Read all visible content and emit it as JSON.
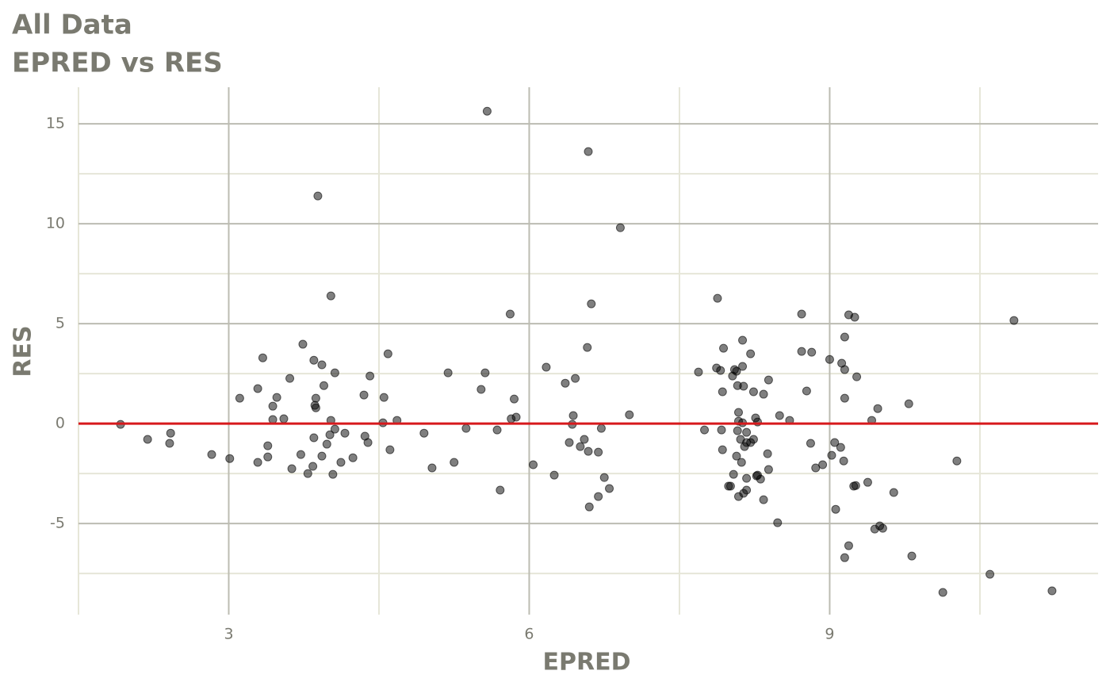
{
  "chart_data": {
    "type": "scatter",
    "title": "All Data",
    "subtitle": "EPRED vs RES",
    "x_label": "EPRED",
    "y_label": "RES",
    "xlim": [
      1.5,
      11.68
    ],
    "ylim": [
      -9.56,
      16.83
    ],
    "xticks": [
      3,
      6,
      9
    ],
    "yticks": [
      -5,
      0,
      5,
      10,
      15
    ],
    "x_minor_grid": [
      1.5,
      4.5,
      7.5,
      10.5
    ],
    "y_minor_grid": [
      -7.5,
      -2.5,
      2.5,
      7.5,
      12.5
    ],
    "grid": true,
    "point_color": "#000000",
    "hline": {
      "value": 0,
      "color": "#d7191c"
    },
    "x": [
      1.92,
      2.19,
      2.41,
      2.42,
      2.83,
      3.01,
      3.11,
      3.29,
      3.34,
      3.29,
      3.39,
      3.39,
      3.44,
      3.44,
      3.48,
      3.55,
      3.61,
      3.63,
      3.72,
      3.74,
      3.79,
      3.85,
      3.85,
      3.84,
      3.86,
      3.87,
      3.87,
      3.89,
      3.93,
      3.93,
      3.95,
      3.98,
      4.01,
      4.02,
      4.02,
      4.04,
      4.06,
      4.06,
      4.12,
      4.16,
      4.24,
      4.35,
      4.36,
      4.39,
      4.41,
      4.54,
      4.55,
      4.59,
      4.61,
      4.68,
      4.95,
      5.03,
      5.19,
      5.25,
      5.37,
      5.52,
      5.56,
      5.58,
      5.68,
      5.71,
      5.81,
      5.82,
      5.85,
      5.87,
      6.04,
      6.17,
      6.25,
      6.36,
      6.4,
      6.43,
      6.44,
      6.46,
      6.51,
      6.55,
      6.58,
      6.59,
      6.59,
      6.6,
      6.62,
      6.69,
      6.69,
      6.72,
      6.75,
      6.8,
      6.91,
      7.0,
      7.69,
      7.75,
      7.87,
      7.88,
      7.91,
      7.92,
      7.93,
      7.93,
      7.94,
      7.99,
      8.01,
      8.03,
      8.04,
      8.05,
      8.07,
      8.07,
      8.08,
      8.08,
      8.09,
      8.09,
      8.09,
      8.11,
      8.12,
      8.13,
      8.13,
      8.13,
      8.14,
      8.14,
      8.15,
      8.17,
      8.17,
      8.17,
      8.17,
      8.21,
      8.21,
      8.24,
      8.24,
      8.26,
      8.27,
      8.28,
      8.28,
      8.31,
      8.34,
      8.34,
      8.38,
      8.39,
      8.39,
      8.48,
      8.5,
      8.6,
      8.72,
      8.72,
      8.77,
      8.81,
      8.82,
      8.86,
      8.93,
      9.0,
      9.02,
      9.05,
      9.06,
      9.11,
      9.12,
      9.14,
      9.15,
      9.15,
      9.15,
      9.15,
      9.19,
      9.19,
      9.24,
      9.25,
      9.26,
      9.27,
      9.38,
      9.42,
      9.45,
      9.48,
      9.5,
      9.53,
      9.64,
      9.79,
      9.82,
      10.13,
      10.27,
      10.6,
      10.84,
      11.22
    ],
    "y": [
      -0.04,
      -0.79,
      -0.99,
      -0.48,
      -1.55,
      -1.75,
      1.27,
      1.75,
      3.29,
      -1.94,
      -1.11,
      -1.67,
      0.87,
      0.2,
      1.31,
      0.24,
      2.26,
      -2.26,
      -1.55,
      3.97,
      -2.5,
      3.17,
      -0.71,
      -2.14,
      0.91,
      1.27,
      0.79,
      11.39,
      2.94,
      -1.63,
      1.9,
      -1.03,
      -0.56,
      6.39,
      0.16,
      -2.54,
      2.54,
      -0.28,
      -1.94,
      -0.48,
      -1.71,
      1.43,
      -0.63,
      -0.95,
      2.38,
      0.04,
      1.31,
      3.49,
      -1.31,
      0.16,
      -0.48,
      -2.22,
      2.54,
      -1.94,
      -0.24,
      1.71,
      2.54,
      15.63,
      -0.32,
      -3.33,
      5.48,
      0.24,
      1.23,
      0.32,
      -2.06,
      2.82,
      -2.58,
      2.02,
      -0.95,
      -0.04,
      0.4,
      2.26,
      -1.15,
      -0.79,
      3.81,
      13.61,
      -1.39,
      -4.17,
      5.99,
      -1.43,
      -3.65,
      -0.24,
      -2.7,
      -3.25,
      9.8,
      0.44,
      2.58,
      -0.32,
      2.78,
      6.27,
      2.66,
      -0.32,
      -1.31,
      1.59,
      3.77,
      -3.13,
      -3.13,
      2.38,
      -2.54,
      2.7,
      2.62,
      -1.63,
      1.9,
      -0.36,
      -3.65,
      0.56,
      0.12,
      -0.79,
      -1.94,
      2.86,
      4.17,
      0.04,
      -3.49,
      1.87,
      -1.15,
      -0.44,
      -3.33,
      -2.74,
      -0.95,
      3.49,
      -0.95,
      1.59,
      -0.79,
      0.28,
      -2.62,
      0.08,
      -2.58,
      -2.78,
      -3.81,
      1.47,
      -1.51,
      2.18,
      -2.3,
      -4.96,
      0.4,
      0.16,
      5.48,
      3.61,
      1.63,
      -0.99,
      3.57,
      -2.22,
      -2.06,
      3.21,
      -1.59,
      -0.95,
      -4.29,
      -1.19,
      3.02,
      -1.87,
      -6.71,
      4.33,
      2.7,
      1.27,
      5.44,
      -6.11,
      -3.13,
      5.32,
      -3.1,
      2.34,
      -2.94,
      0.16,
      -5.28,
      0.75,
      -5.12,
      -5.24,
      -3.45,
      0.99,
      -6.63,
      -8.45,
      -1.87,
      -7.54,
      5.16,
      -8.37
    ]
  }
}
